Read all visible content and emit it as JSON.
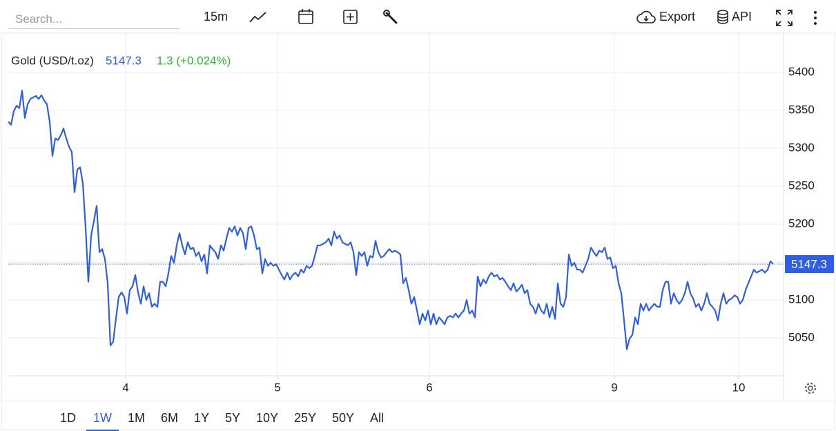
{
  "toolbar": {
    "search_placeholder": "Search...",
    "interval": "15m",
    "export": "Export",
    "api": "API"
  },
  "header": {
    "change": "1.3 (+0.024%)"
  },
  "ranges": {
    "items": [
      "1D",
      "1W",
      "1M",
      "6M",
      "1Y",
      "5Y",
      "10Y",
      "25Y",
      "50Y",
      "All"
    ],
    "selected": "1W"
  },
  "chart_data": {
    "type": "line",
    "x": [
      0,
      1,
      2,
      3,
      4,
      5,
      6,
      7,
      8,
      9,
      10,
      11,
      12,
      13,
      14,
      15,
      16,
      17,
      18,
      19,
      20,
      21,
      22,
      23,
      24,
      25,
      26,
      27,
      28,
      29,
      30,
      31,
      32,
      33,
      34,
      35,
      36,
      37,
      38,
      39,
      40,
      41,
      42,
      43,
      44,
      45,
      46,
      47,
      48,
      49,
      50,
      51,
      52,
      53,
      54,
      55,
      56,
      57,
      58,
      59,
      60,
      61,
      62,
      63,
      64,
      65,
      66,
      67,
      68,
      69,
      70,
      71,
      72,
      73,
      74,
      75,
      76,
      77,
      78,
      79,
      80,
      81,
      82,
      83,
      84,
      85,
      86,
      87,
      88,
      89,
      90,
      91,
      92,
      93,
      94,
      95,
      96,
      97,
      98,
      99,
      100,
      101,
      102,
      103,
      104,
      105,
      106,
      107,
      108,
      109,
      110,
      111,
      112,
      113,
      114,
      115,
      116,
      117,
      118,
      119,
      120,
      121,
      122,
      123,
      124,
      125,
      126,
      127,
      128,
      129,
      130,
      131,
      132,
      133,
      134,
      135,
      136,
      137,
      138,
      139,
      140,
      141,
      142,
      143,
      144,
      145,
      146,
      147,
      148,
      149,
      150,
      151,
      152,
      153,
      154,
      155,
      156,
      157,
      158,
      159,
      160,
      161,
      162,
      163,
      164,
      165,
      166,
      167,
      168,
      169,
      170,
      171,
      172,
      173,
      174,
      175,
      176,
      177,
      178,
      179,
      180,
      181,
      182,
      183,
      184,
      185,
      186,
      187,
      188,
      189,
      190,
      191,
      192,
      193,
      194,
      195,
      196,
      197,
      198,
      199,
      200,
      201,
      202,
      203,
      204,
      205,
      206,
      207,
      208,
      209,
      210,
      211,
      212,
      213,
      214,
      215,
      216,
      217,
      218,
      219,
      220,
      221,
      222,
      223,
      224,
      225,
      226,
      227,
      228,
      229,
      230,
      231,
      232,
      233,
      234,
      235,
      236,
      237,
      238,
      239,
      240,
      241,
      242,
      243,
      244,
      245,
      246,
      247,
      248,
      249,
      250,
      251,
      252,
      253,
      254,
      255,
      256,
      257,
      258,
      259,
      260,
      261,
      262,
      263,
      264,
      265,
      266,
      267,
      268,
      269,
      270,
      271,
      272,
      273,
      274,
      275,
      276,
      277
    ],
    "series": [
      {
        "name": "Gold (USD/t.oz)",
        "color": "#2f5ee6",
        "values": [
          5335,
          5331,
          5349,
          5356,
          5353,
          5376,
          5340,
          5358,
          5365,
          5367,
          5369,
          5365,
          5370,
          5363,
          5358,
          5335,
          5290,
          5313,
          5311,
          5317,
          5326,
          5313,
          5302,
          5295,
          5242,
          5272,
          5275,
          5254,
          5195,
          5124,
          5185,
          5204,
          5224,
          5163,
          5167,
          5154,
          5122,
          5040,
          5045,
          5076,
          5104,
          5110,
          5104,
          5082,
          5113,
          5118,
          5133,
          5110,
          5095,
          5118,
          5100,
          5109,
          5091,
          5095,
          5091,
          5124,
          5124,
          5118,
          5135,
          5158,
          5149,
          5172,
          5188,
          5172,
          5160,
          5176,
          5167,
          5169,
          5158,
          5163,
          5151,
          5160,
          5135,
          5172,
          5167,
          5163,
          5154,
          5172,
          5165,
          5181,
          5195,
          5190,
          5197,
          5185,
          5195,
          5188,
          5167,
          5195,
          5197,
          5185,
          5167,
          5169,
          5135,
          5154,
          5145,
          5149,
          5145,
          5147,
          5140,
          5133,
          5127,
          5136,
          5127,
          5133,
          5136,
          5131,
          5140,
          5136,
          5145,
          5142,
          5145,
          5158,
          5172,
          5172,
          5174,
          5176,
          5181,
          5172,
          5190,
          5181,
          5185,
          5176,
          5174,
          5172,
          5176,
          5163,
          5133,
          5163,
          5158,
          5163,
          5145,
          5158,
          5156,
          5178,
          5163,
          5156,
          5158,
          5163,
          5167,
          5163,
          5165,
          5163,
          5160,
          5122,
          5129,
          5113,
          5095,
          5104,
          5086,
          5068,
          5082,
          5073,
          5086,
          5068,
          5082,
          5068,
          5077,
          5073,
          5068,
          5077,
          5079,
          5077,
          5082,
          5077,
          5082,
          5086,
          5100,
          5082,
          5086,
          5077,
          5131,
          5118,
          5127,
          5122,
          5131,
          5136,
          5131,
          5133,
          5127,
          5129,
          5124,
          5118,
          5113,
          5122,
          5111,
          5115,
          5120,
          5109,
          5113,
          5095,
          5091,
          5082,
          5095,
          5086,
          5082,
          5095,
          5077,
          5091,
          5075,
          5122,
          5095,
          5091,
          5104,
          5160,
          5145,
          5149,
          5140,
          5140,
          5136,
          5145,
          5154,
          5169,
          5163,
          5158,
          5165,
          5163,
          5169,
          5154,
          5156,
          5142,
          5145,
          5122,
          5109,
          5073,
          5035,
          5049,
          5054,
          5077,
          5068,
          5095,
          5086,
          5095,
          5086,
          5091,
          5095,
          5091,
          5091,
          5113,
          5124,
          5124,
          5095,
          5109,
          5100,
          5095,
          5100,
          5109,
          5124,
          5109,
          5102,
          5091,
          5095,
          5086,
          5095,
          5109,
          5095,
          5091,
          5086,
          5073,
          5095,
          5109,
          5095,
          5100,
          5102,
          5106,
          5104,
          5095,
          5100,
          5113,
          5122,
          5131,
          5140,
          5136,
          5138,
          5140,
          5136,
          5140,
          5151,
          5147.3
        ]
      }
    ],
    "last_value": 5147.3,
    "xlim": [
      0,
      280.75
    ],
    "xticks": [
      {
        "value": 42.5,
        "label": "4"
      },
      {
        "value": 97.5,
        "label": "5"
      },
      {
        "value": 152.5,
        "label": "6"
      },
      {
        "value": 219.5,
        "label": "9"
      },
      {
        "value": 264.5,
        "label": "10"
      }
    ],
    "ylim": [
      5000,
      5450
    ],
    "yticks": [
      5050,
      5100,
      5150,
      5200,
      5250,
      5300,
      5350,
      5400
    ],
    "grid": true
  }
}
